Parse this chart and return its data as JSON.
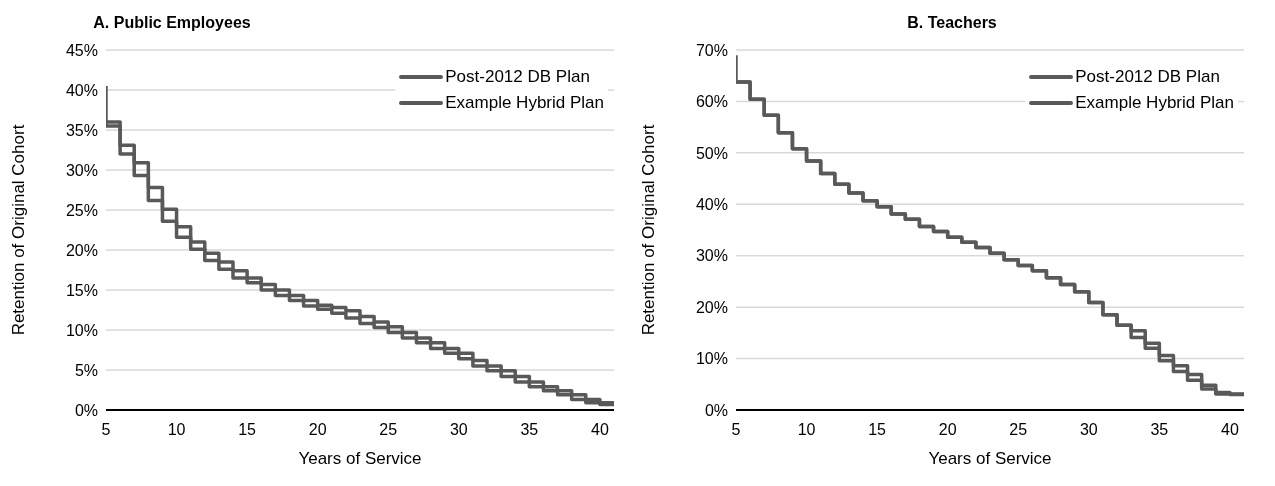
{
  "chart_data": [
    {
      "type": "step",
      "title": "A. Public Employees",
      "xlabel": "Years of Service",
      "ylabel": "Retention of Original Cohort",
      "xlim": [
        5,
        41
      ],
      "xticks": [
        5,
        10,
        15,
        20,
        25,
        30,
        35,
        40
      ],
      "ylim": [
        0,
        45
      ],
      "yticks": [
        {
          "value": 0,
          "label": "0%"
        },
        {
          "value": 5,
          "label": "5%"
        },
        {
          "value": 10,
          "label": "10%"
        },
        {
          "value": 15,
          "label": "15%"
        },
        {
          "value": 20,
          "label": "20%"
        },
        {
          "value": 25,
          "label": "25%"
        },
        {
          "value": 30,
          "label": "30%"
        },
        {
          "value": 35,
          "label": "35%"
        },
        {
          "value": 40,
          "label": "40%"
        },
        {
          "value": 45,
          "label": "45%"
        }
      ],
      "grid": "y",
      "legend": "top right",
      "series": [
        {
          "name": "Post-2012 DB Plan",
          "color": "#595959",
          "x": [
            5,
            5,
            6,
            7,
            8,
            9,
            10,
            11,
            12,
            13,
            14,
            15,
            16,
            17,
            18,
            19,
            20,
            21,
            22,
            23,
            24,
            25,
            26,
            27,
            28,
            29,
            30,
            31,
            32,
            33,
            34,
            35,
            36,
            37,
            38,
            39,
            40,
            41
          ],
          "values": [
            40.5,
            35.5,
            32.0,
            29.3,
            26.2,
            23.6,
            21.6,
            20.1,
            18.7,
            17.6,
            16.5,
            15.9,
            15.0,
            14.3,
            13.7,
            13.0,
            12.6,
            12.1,
            11.5,
            10.8,
            10.3,
            9.7,
            9.0,
            8.4,
            7.7,
            7.1,
            6.4,
            5.5,
            4.9,
            4.2,
            3.5,
            2.9,
            2.4,
            1.9,
            1.3,
            0.9,
            0.7,
            0.7
          ]
        },
        {
          "name": "Example Hybrid Plan",
          "color": "#595959",
          "x": [
            5,
            6,
            7,
            8,
            9,
            10,
            11,
            12,
            13,
            14,
            15,
            16,
            17,
            18,
            19,
            20,
            21,
            22,
            23,
            24,
            25,
            26,
            27,
            28,
            29,
            30,
            31,
            32,
            33,
            34,
            35,
            36,
            37,
            38,
            39,
            40,
            41
          ],
          "values": [
            36.0,
            33.1,
            30.9,
            27.8,
            25.1,
            22.9,
            21.0,
            19.6,
            18.5,
            17.4,
            16.5,
            15.7,
            15.0,
            14.3,
            13.7,
            13.1,
            12.8,
            12.4,
            11.7,
            11.0,
            10.4,
            9.7,
            9.0,
            8.4,
            7.7,
            7.1,
            6.2,
            5.5,
            4.9,
            4.2,
            3.5,
            2.9,
            2.4,
            1.9,
            1.3,
            0.9,
            0.9
          ]
        }
      ]
    },
    {
      "type": "step",
      "title": "B. Teachers",
      "xlabel": "Years of Service",
      "ylabel": "Retention of Original Cohort",
      "xlim": [
        5,
        41
      ],
      "xticks": [
        5,
        10,
        15,
        20,
        25,
        30,
        35,
        40
      ],
      "ylim": [
        0,
        70
      ],
      "yticks": [
        {
          "value": 0,
          "label": "0%"
        },
        {
          "value": 10,
          "label": "10%"
        },
        {
          "value": 20,
          "label": "20%"
        },
        {
          "value": 30,
          "label": "30%"
        },
        {
          "value": 40,
          "label": "40%"
        },
        {
          "value": 50,
          "label": "50%"
        },
        {
          "value": 60,
          "label": "60%"
        },
        {
          "value": 70,
          "label": "70%"
        }
      ],
      "grid": "y",
      "legend": "top right",
      "series": [
        {
          "name": "Post-2012 DB Plan",
          "color": "#595959",
          "x": [
            5,
            5,
            6,
            7,
            8,
            9,
            10,
            11,
            12,
            13,
            14,
            15,
            16,
            17,
            18,
            19,
            20,
            21,
            22,
            23,
            24,
            25,
            26,
            27,
            28,
            29,
            30,
            31,
            32,
            33,
            34,
            35,
            36,
            37,
            38,
            39,
            40,
            41
          ],
          "values": [
            69,
            63.8,
            60.4,
            57.3,
            53.9,
            50.8,
            48.4,
            46.0,
            43.9,
            42.2,
            40.7,
            39.5,
            38.1,
            37.1,
            35.7,
            34.7,
            33.6,
            32.6,
            31.6,
            30.5,
            29.2,
            28.1,
            27.1,
            25.7,
            24.4,
            23.0,
            20.9,
            18.5,
            16.5,
            14.1,
            12.0,
            9.6,
            7.5,
            5.8,
            4.1,
            3.1,
            3.0,
            3.0
          ]
        },
        {
          "name": "Example Hybrid Plan",
          "color": "#595959",
          "x": [
            5,
            6,
            7,
            8,
            9,
            10,
            11,
            12,
            13,
            14,
            15,
            16,
            17,
            18,
            19,
            20,
            21,
            22,
            23,
            24,
            25,
            26,
            27,
            28,
            29,
            30,
            31,
            32,
            33,
            34,
            35,
            36,
            37,
            38,
            39,
            40,
            41
          ],
          "values": [
            63.8,
            60.4,
            57.3,
            53.9,
            50.8,
            48.4,
            46.0,
            43.9,
            42.2,
            40.7,
            39.5,
            38.1,
            37.1,
            35.7,
            34.7,
            33.6,
            32.6,
            31.6,
            30.5,
            29.2,
            28.1,
            27.1,
            25.7,
            24.4,
            23.0,
            20.9,
            18.5,
            16.5,
            15.4,
            13.0,
            10.6,
            8.6,
            6.9,
            4.8,
            3.4,
            3.1,
            3.1
          ]
        }
      ]
    }
  ]
}
